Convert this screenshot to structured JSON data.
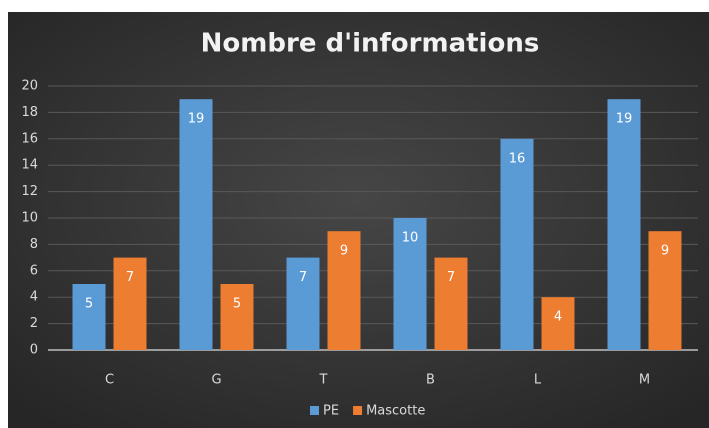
{
  "chart_data": {
    "type": "bar",
    "title": "Nombre d'informations",
    "categories": [
      "C",
      "G",
      "T",
      "B",
      "L",
      "M"
    ],
    "series": [
      {
        "name": "PE",
        "color": "#5b9bd5",
        "values": [
          5,
          19,
          7,
          10,
          16,
          19
        ]
      },
      {
        "name": "Mascotte",
        "color": "#ed7d31",
        "values": [
          7,
          5,
          9,
          7,
          4,
          9
        ]
      }
    ],
    "ylim": [
      0,
      20
    ],
    "yticks": [
      0,
      2,
      4,
      6,
      8,
      10,
      12,
      14,
      16,
      18,
      20
    ],
    "grid": true,
    "legend": "bottom",
    "data_labels": true
  }
}
